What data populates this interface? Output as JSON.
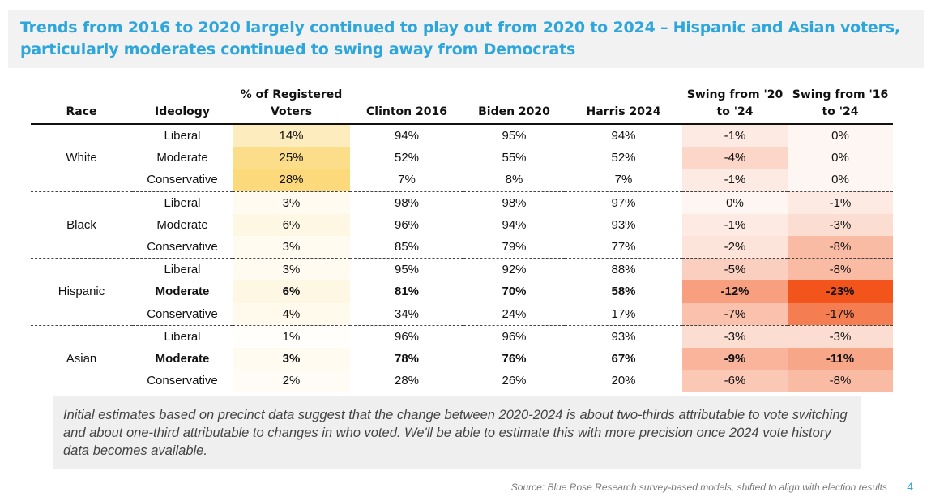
{
  "title": "Trends from 2016 to 2020 largely continued to play out from 2020 to 2024 – Hispanic and Asian voters, particularly moderates continued to swing away from Democrats",
  "columns": [
    "Race",
    "Ideology",
    "% of Registered Voters",
    "Clinton 2016",
    "Biden 2020",
    "Harris 2024",
    "Swing from '20 to '24",
    "Swing from '16 to '24"
  ],
  "groups": [
    {
      "race": "White",
      "rows": [
        {
          "ideology": "Liberal",
          "pct": "14%",
          "clinton": "94%",
          "biden": "95%",
          "harris": "94%",
          "swing2024": "-1%",
          "swing1624": "0%",
          "bold": false
        },
        {
          "ideology": "Moderate",
          "pct": "25%",
          "clinton": "52%",
          "biden": "55%",
          "harris": "52%",
          "swing2024": "-4%",
          "swing1624": "0%",
          "bold": false
        },
        {
          "ideology": "Conservative",
          "pct": "28%",
          "clinton": "7%",
          "biden": "8%",
          "harris": "7%",
          "swing2024": "-1%",
          "swing1624": "0%",
          "bold": false
        }
      ]
    },
    {
      "race": "Black",
      "rows": [
        {
          "ideology": "Liberal",
          "pct": "3%",
          "clinton": "98%",
          "biden": "98%",
          "harris": "97%",
          "swing2024": "0%",
          "swing1624": "-1%",
          "bold": false
        },
        {
          "ideology": "Moderate",
          "pct": "6%",
          "clinton": "96%",
          "biden": "94%",
          "harris": "93%",
          "swing2024": "-1%",
          "swing1624": "-3%",
          "bold": false
        },
        {
          "ideology": "Conservative",
          "pct": "3%",
          "clinton": "85%",
          "biden": "79%",
          "harris": "77%",
          "swing2024": "-2%",
          "swing1624": "-8%",
          "bold": false
        }
      ]
    },
    {
      "race": "Hispanic",
      "rows": [
        {
          "ideology": "Liberal",
          "pct": "3%",
          "clinton": "95%",
          "biden": "92%",
          "harris": "88%",
          "swing2024": "-5%",
          "swing1624": "-8%",
          "bold": false
        },
        {
          "ideology": "Moderate",
          "pct": "6%",
          "clinton": "81%",
          "biden": "70%",
          "harris": "58%",
          "swing2024": "-12%",
          "swing1624": "-23%",
          "bold": true
        },
        {
          "ideology": "Conservative",
          "pct": "4%",
          "clinton": "34%",
          "biden": "24%",
          "harris": "17%",
          "swing2024": "-7%",
          "swing1624": "-17%",
          "bold": false
        }
      ]
    },
    {
      "race": "Asian",
      "rows": [
        {
          "ideology": "Liberal",
          "pct": "1%",
          "clinton": "96%",
          "biden": "96%",
          "harris": "93%",
          "swing2024": "-3%",
          "swing1624": "-3%",
          "bold": false
        },
        {
          "ideology": "Moderate",
          "pct": "3%",
          "clinton": "78%",
          "biden": "76%",
          "harris": "67%",
          "swing2024": "-9%",
          "swing1624": "-11%",
          "bold": true
        },
        {
          "ideology": "Conservative",
          "pct": "2%",
          "clinton": "28%",
          "biden": "26%",
          "harris": "20%",
          "swing2024": "-6%",
          "swing1624": "-8%",
          "bold": false
        }
      ]
    }
  ],
  "footnote": "Initial estimates based on precinct data suggest that the change between 2020-2024 is about two-thirds attributable to vote switching and about one-third attributable to changes in who voted. We'll be able to estimate this with more precision once 2024 vote history data becomes available.",
  "source": "Source: Blue Rose Research survey-based models, shifted to align with election results",
  "page_number": "4",
  "colors": {
    "title": "#2ea6dc",
    "registered_heat": "#fbd978",
    "swing_heat": "#f2541b"
  }
}
